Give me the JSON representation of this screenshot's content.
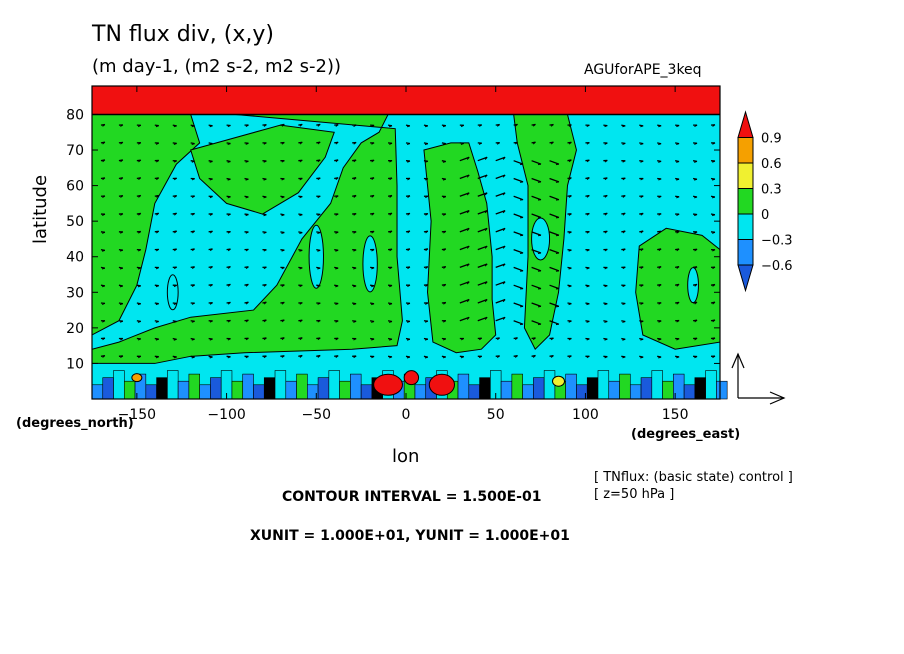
{
  "chart_data": {
    "type": "heatmap",
    "title": "TN flux div, (x,y)",
    "subtitle": "(m day-1, (m2 s-2, m2 s-2))",
    "tag": "AGUforAPE_3keq",
    "xlabel": "lon",
    "ylabel": "latitude",
    "x_unit": "(degrees_east)",
    "y_unit": "(degrees_north)",
    "xlim": [
      -175,
      175
    ],
    "ylim": [
      0,
      88
    ],
    "x_ticks": [
      -150,
      -100,
      -50,
      0,
      50,
      100,
      150
    ],
    "y_ticks": [
      10,
      20,
      30,
      40,
      50,
      60,
      70,
      80
    ],
    "colorbar": {
      "levels": [
        "0.9",
        "0.6",
        "0.3",
        "0",
        "-0.3",
        "-0.6"
      ],
      "colors": [
        "#f01010",
        "#f5a000",
        "#f0f030",
        "#22d822",
        "#00e6f0",
        "#1e90ff",
        "#1a5adc"
      ]
    },
    "notes": [
      "[ TNflux: (basic state) control ]",
      "[ z=50 hPa ]"
    ],
    "contour_interval": "CONTOUR INTERVAL = 1.500E-01",
    "vector_units": "XUNIT = 1.000E+01, YUNIT = 1.000E+01"
  }
}
